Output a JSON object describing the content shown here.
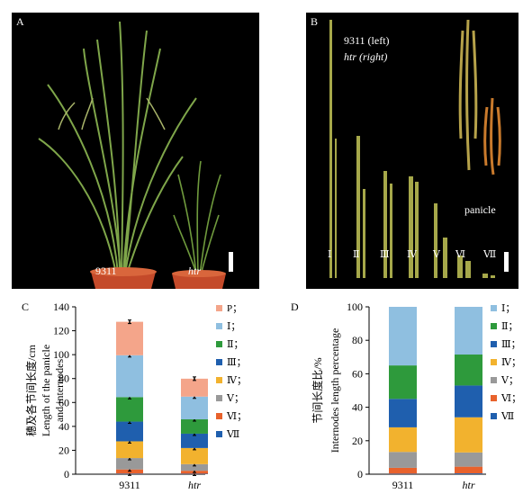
{
  "panel_a": {
    "label": "A",
    "left_plant": "9311",
    "right_plant": "htr"
  },
  "panel_b": {
    "label": "B",
    "legend_line1": "9311 (left)",
    "legend_line2": "htr (right)",
    "panicle_label": "panicle",
    "internode_labels": [
      "Ⅰ",
      "Ⅱ",
      "Ⅲ",
      "Ⅳ",
      "Ⅴ",
      "Ⅵ",
      "Ⅶ"
    ]
  },
  "panel_c": {
    "label": "C",
    "ylabel_cn": "穗及各节间长度/cm",
    "ylabel_en1": "Length of the panicle",
    "ylabel_en2": "and internodes",
    "legend": [
      "P；",
      "Ⅰ；",
      "Ⅱ；",
      "Ⅲ；",
      "Ⅳ；",
      "Ⅴ；",
      "Ⅵ；",
      "Ⅶ"
    ]
  },
  "panel_d": {
    "label": "D",
    "ylabel_cn": "节间长度比/%",
    "ylabel_en": "Internodes length percentage",
    "legend": [
      "Ⅰ；",
      "Ⅱ；",
      "Ⅲ；",
      "Ⅳ；",
      "Ⅴ；",
      "Ⅵ；",
      "Ⅶ"
    ]
  },
  "colors": {
    "P": "#f4a58a",
    "I": "#8fbfe0",
    "II": "#2e9a3c",
    "III": "#1f5fae",
    "IV": "#f2b22e",
    "V": "#999999",
    "VI": "#e8622c",
    "VII": "#1f5fae"
  },
  "chart_data": [
    {
      "type": "bar",
      "stacked": true,
      "categories": [
        "9311",
        "htr"
      ],
      "ylim": [
        0,
        140
      ],
      "yticks": [
        0,
        20,
        40,
        60,
        80,
        100,
        120,
        140
      ],
      "series": [
        {
          "name": "Ⅶ",
          "key": "VII",
          "values": [
            0.5,
            0.4
          ]
        },
        {
          "name": "Ⅵ",
          "key": "VI",
          "values": [
            3.5,
            2.5
          ]
        },
        {
          "name": "Ⅴ",
          "key": "V",
          "values": [
            9.5,
            5.5
          ]
        },
        {
          "name": "Ⅳ",
          "key": "IV",
          "values": [
            14,
            13.5
          ]
        },
        {
          "name": "Ⅲ",
          "key": "III",
          "values": [
            16.5,
            12
          ]
        },
        {
          "name": "Ⅱ",
          "key": "II",
          "values": [
            20.5,
            12
          ]
        },
        {
          "name": "Ⅰ",
          "key": "I",
          "values": [
            35,
            19
          ]
        },
        {
          "name": "P",
          "key": "P",
          "values": [
            28,
            15
          ]
        }
      ]
    },
    {
      "type": "bar",
      "stacked": true,
      "categories": [
        "9311",
        "htr"
      ],
      "ylim": [
        0,
        100
      ],
      "yticks": [
        0,
        20,
        40,
        60,
        80,
        100
      ],
      "series": [
        {
          "name": "Ⅶ",
          "key": "VII",
          "values": [
            0.3,
            0.5
          ]
        },
        {
          "name": "Ⅵ",
          "key": "VI",
          "values": [
            3.5,
            4
          ]
        },
        {
          "name": "Ⅴ",
          "key": "V",
          "values": [
            9.5,
            8.5
          ]
        },
        {
          "name": "Ⅳ",
          "key": "IV",
          "values": [
            14.7,
            21
          ]
        },
        {
          "name": "Ⅲ",
          "key": "III",
          "values": [
            17,
            19
          ]
        },
        {
          "name": "Ⅱ",
          "key": "II",
          "values": [
            20,
            18.5
          ]
        },
        {
          "name": "Ⅰ",
          "key": "I",
          "values": [
            35,
            28.5
          ]
        }
      ]
    }
  ]
}
